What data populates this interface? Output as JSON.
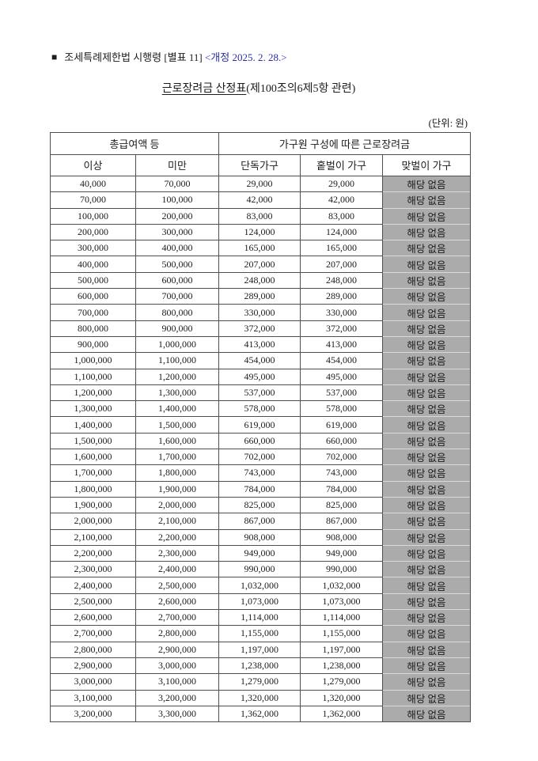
{
  "page": {
    "header_line": {
      "bullet": "■",
      "text": "조세특례제한법 시행령 [별표 11]",
      "revision": "<개정 2025. 2. 28.>"
    },
    "title": {
      "underlined": "근로장려금 산정표",
      "rest": "(제100조의6제5항 관련)"
    },
    "unit_note": "(단위: 원)"
  },
  "colors": {
    "revision_text": "#2b2baa",
    "not_applicable_bg": "#ababab",
    "table_border": "#4f4f4f"
  },
  "table": {
    "group_headers": {
      "income": "총급여액 등",
      "credit": "가구원 구성에 따른 근로장려금"
    },
    "columns": [
      "이상",
      "미만",
      "단독가구",
      "홑벌이 가구",
      "맞벌이 가구"
    ],
    "not_applicable_label": "해당 없음",
    "rows": [
      [
        "40,000",
        "70,000",
        "29,000",
        "29,000",
        "해당 없음"
      ],
      [
        "70,000",
        "100,000",
        "42,000",
        "42,000",
        "해당 없음"
      ],
      [
        "100,000",
        "200,000",
        "83,000",
        "83,000",
        "해당 없음"
      ],
      [
        "200,000",
        "300,000",
        "124,000",
        "124,000",
        "해당 없음"
      ],
      [
        "300,000",
        "400,000",
        "165,000",
        "165,000",
        "해당 없음"
      ],
      [
        "400,000",
        "500,000",
        "207,000",
        "207,000",
        "해당 없음"
      ],
      [
        "500,000",
        "600,000",
        "248,000",
        "248,000",
        "해당 없음"
      ],
      [
        "600,000",
        "700,000",
        "289,000",
        "289,000",
        "해당 없음"
      ],
      [
        "700,000",
        "800,000",
        "330,000",
        "330,000",
        "해당 없음"
      ],
      [
        "800,000",
        "900,000",
        "372,000",
        "372,000",
        "해당 없음"
      ],
      [
        "900,000",
        "1,000,000",
        "413,000",
        "413,000",
        "해당 없음"
      ],
      [
        "1,000,000",
        "1,100,000",
        "454,000",
        "454,000",
        "해당 없음"
      ],
      [
        "1,100,000",
        "1,200,000",
        "495,000",
        "495,000",
        "해당 없음"
      ],
      [
        "1,200,000",
        "1,300,000",
        "537,000",
        "537,000",
        "해당 없음"
      ],
      [
        "1,300,000",
        "1,400,000",
        "578,000",
        "578,000",
        "해당 없음"
      ],
      [
        "1,400,000",
        "1,500,000",
        "619,000",
        "619,000",
        "해당 없음"
      ],
      [
        "1,500,000",
        "1,600,000",
        "660,000",
        "660,000",
        "해당 없음"
      ],
      [
        "1,600,000",
        "1,700,000",
        "702,000",
        "702,000",
        "해당 없음"
      ],
      [
        "1,700,000",
        "1,800,000",
        "743,000",
        "743,000",
        "해당 없음"
      ],
      [
        "1,800,000",
        "1,900,000",
        "784,000",
        "784,000",
        "해당 없음"
      ],
      [
        "1,900,000",
        "2,000,000",
        "825,000",
        "825,000",
        "해당 없음"
      ],
      [
        "2,000,000",
        "2,100,000",
        "867,000",
        "867,000",
        "해당 없음"
      ],
      [
        "2,100,000",
        "2,200,000",
        "908,000",
        "908,000",
        "해당 없음"
      ],
      [
        "2,200,000",
        "2,300,000",
        "949,000",
        "949,000",
        "해당 없음"
      ],
      [
        "2,300,000",
        "2,400,000",
        "990,000",
        "990,000",
        "해당 없음"
      ],
      [
        "2,400,000",
        "2,500,000",
        "1,032,000",
        "1,032,000",
        "해당 없음"
      ],
      [
        "2,500,000",
        "2,600,000",
        "1,073,000",
        "1,073,000",
        "해당 없음"
      ],
      [
        "2,600,000",
        "2,700,000",
        "1,114,000",
        "1,114,000",
        "해당 없음"
      ],
      [
        "2,700,000",
        "2,800,000",
        "1,155,000",
        "1,155,000",
        "해당 없음"
      ],
      [
        "2,800,000",
        "2,900,000",
        "1,197,000",
        "1,197,000",
        "해당 없음"
      ],
      [
        "2,900,000",
        "3,000,000",
        "1,238,000",
        "1,238,000",
        "해당 없음"
      ],
      [
        "3,000,000",
        "3,100,000",
        "1,279,000",
        "1,279,000",
        "해당 없음"
      ],
      [
        "3,100,000",
        "3,200,000",
        "1,320,000",
        "1,320,000",
        "해당 없음"
      ],
      [
        "3,200,000",
        "3,300,000",
        "1,362,000",
        "1,362,000",
        "해당 없음"
      ]
    ]
  }
}
